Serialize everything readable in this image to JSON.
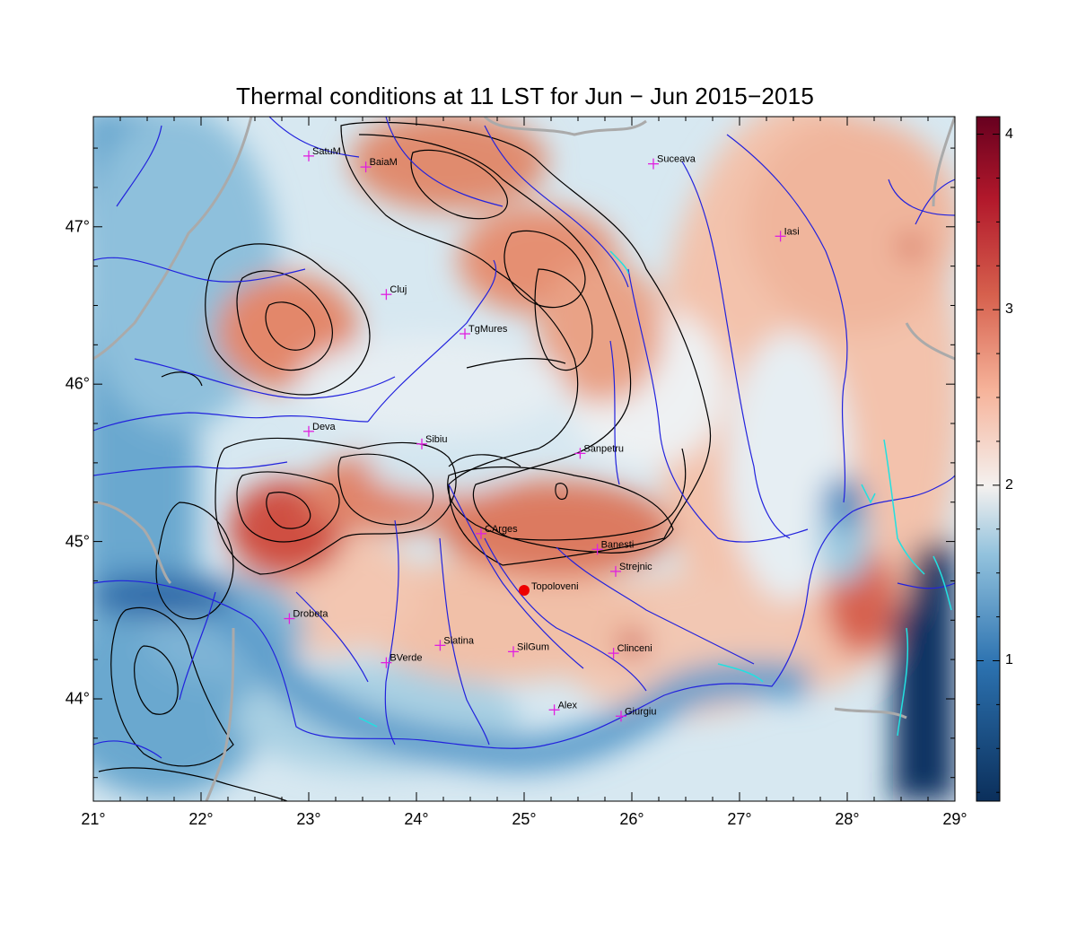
{
  "title": "Thermal conditions at 11 LST for Jun − Jun  2015−2015",
  "longitude_labels": [
    "21°",
    "22°",
    "23°",
    "24°",
    "25°",
    "26°",
    "27°",
    "28°",
    "29°"
  ],
  "latitude_labels": [
    "44°",
    "45°",
    "46°",
    "47°"
  ],
  "colorbar_labels": [
    "1",
    "2",
    "3",
    "4"
  ],
  "colorbar_range": [
    0.2,
    4.1
  ],
  "colors": {
    "low": "#0b2f5b",
    "mid": "#f4f1ef",
    "high": "#67001f",
    "rivers": "#2222dd",
    "borders": "#b0b0b0",
    "station_marker": "#e020e0",
    "highlight_station": "#ee0000",
    "contours": "#000000",
    "lakes": "#22e0e0"
  },
  "map_extent": {
    "lon": [
      21,
      29
    ],
    "lat": [
      43.35,
      47.7
    ]
  },
  "stations": [
    {
      "name": "SatuM",
      "lon": 23.0,
      "lat": 47.45
    },
    {
      "name": "BaiaM",
      "lon": 23.53,
      "lat": 47.38
    },
    {
      "name": "Suceava",
      "lon": 26.2,
      "lat": 47.4
    },
    {
      "name": "Iasi",
      "lon": 27.38,
      "lat": 46.94
    },
    {
      "name": "Cluj",
      "lon": 23.72,
      "lat": 46.57
    },
    {
      "name": "TgMures",
      "lon": 24.45,
      "lat": 46.32
    },
    {
      "name": "Deva",
      "lon": 23.0,
      "lat": 45.7
    },
    {
      "name": "Sibiu",
      "lon": 24.05,
      "lat": 45.62
    },
    {
      "name": "Sanpetru",
      "lon": 25.52,
      "lat": 45.56
    },
    {
      "name": "CArges",
      "lon": 24.6,
      "lat": 45.05
    },
    {
      "name": "Banesti",
      "lon": 25.68,
      "lat": 44.95
    },
    {
      "name": "Strejnic",
      "lon": 25.85,
      "lat": 44.81
    },
    {
      "name": "Drobeta",
      "lon": 22.82,
      "lat": 44.51
    },
    {
      "name": "Slatina",
      "lon": 24.22,
      "lat": 44.34
    },
    {
      "name": "SilGum",
      "lon": 24.9,
      "lat": 44.3
    },
    {
      "name": "Clinceni",
      "lon": 25.83,
      "lat": 44.29
    },
    {
      "name": "BVerde",
      "lon": 23.72,
      "lat": 44.23
    },
    {
      "name": "Alex",
      "lon": 25.28,
      "lat": 43.93
    },
    {
      "name": "Giurgiu",
      "lon": 25.9,
      "lat": 43.89
    }
  ],
  "highlight_station": {
    "name": "Topoloveni",
    "lon": 25.0,
    "lat": 44.69
  }
}
